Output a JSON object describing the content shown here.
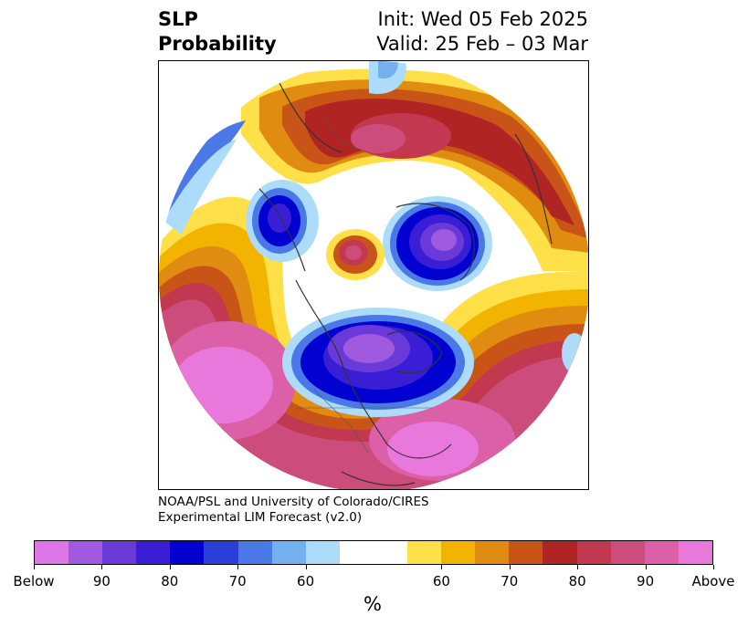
{
  "title": {
    "left_line1": "SLP",
    "left_line2": "Probability",
    "right_line1": "Init: Wed 05 Feb 2025",
    "right_line2": "Valid: 25 Feb – 03 Mar"
  },
  "credit": {
    "line1": "NOAA/PSL and University of Colorado/CIRES",
    "line2": "Experimental LIM Forecast (v2.0)"
  },
  "colorbar": {
    "colors": [
      "#dd77e8",
      "#a05ae0",
      "#6a3ad8",
      "#3a1ed6",
      "#0000d0",
      "#2a3ed8",
      "#4a78e6",
      "#74b0f0",
      "#acdcfa",
      "#ffffff",
      "#ffe048",
      "#f2b400",
      "#e08c10",
      "#c85418",
      "#b02424",
      "#c23850",
      "#cc4c7c",
      "#dc60a8",
      "#e878dc"
    ],
    "tick_labels": [
      "Below",
      "90",
      "80",
      "70",
      "60",
      "60",
      "70",
      "80",
      "90",
      "Above"
    ],
    "unit": "%"
  },
  "map": {
    "projection": "north-polar-stereographic",
    "variable": "sea-level-pressure-probability",
    "regions": [
      {
        "name": "north-pacific-above",
        "category": "Above"
      },
      {
        "name": "eastern-north-america-above",
        "category": "Above"
      },
      {
        "name": "western-europe-above",
        "category": "80"
      },
      {
        "name": "canada-below",
        "category": "Below"
      },
      {
        "name": "barents-siberia-below",
        "category": "Below"
      },
      {
        "name": "alaska-below",
        "category": "80"
      },
      {
        "name": "north-pole-above",
        "category": "80"
      }
    ]
  }
}
